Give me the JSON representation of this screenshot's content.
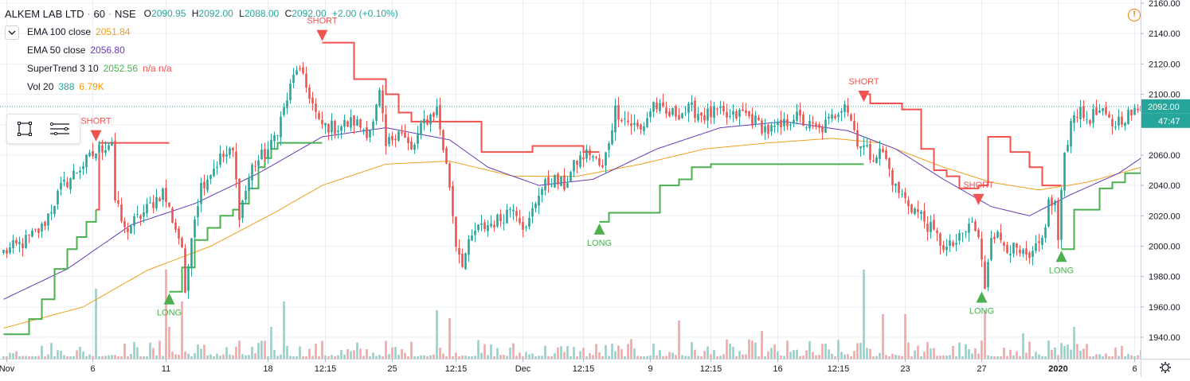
{
  "symbol": {
    "name": "ALKEM LAB LTD",
    "interval": "60",
    "exchange": "NSE"
  },
  "ohlc": {
    "o_label": "O",
    "o": "2090.95",
    "h_label": "H",
    "h": "2092.00",
    "l_label": "L",
    "l": "2088.00",
    "c_label": "C",
    "c": "2092.00",
    "change": "+2.00 (+0.10%)"
  },
  "indicators": [
    {
      "name": "EMA 100 close",
      "value": "2051.84",
      "color": "#f0a01e"
    },
    {
      "name": "EMA 50 close",
      "value": "2056.80",
      "color": "#673ab7"
    },
    {
      "name": "SuperTrend 3 10",
      "value": "2052.56",
      "extra": "n/a n/a",
      "color": "#4caf50",
      "extra_color": "#ef5350"
    },
    {
      "name": "Vol 20",
      "value": "388",
      "value2": "6.79K",
      "color": "#26a69a",
      "value2_color": "#ff9800"
    }
  ],
  "warning_icon": "exclamation-circle-icon",
  "tool_icons": [
    "square-selection-icon",
    "list-lines-icon"
  ],
  "colors": {
    "up": "#26a69a",
    "down": "#ef5350",
    "vol_up": "#8fd3cc",
    "vol_down": "#f4a7a5",
    "st_up": "#4caf50",
    "st_down": "#ef5350",
    "ema100": "#f0a01e",
    "ema50": "#673ab7",
    "grid": "#eceff3",
    "price_line": "#26a69a"
  },
  "chart_data": {
    "type": "candlestick",
    "ylim": [
      1932,
      2162
    ],
    "y_ticks": [
      2160,
      2140,
      2120,
      2100,
      2080,
      2060,
      2040,
      2020,
      2000,
      1980,
      1960,
      1940
    ],
    "y_tick_labels": [
      "2160.00",
      "2140.00",
      "2120.00",
      "2100.00",
      "2080.00",
      "2060.00",
      "2040.00",
      "2020.00",
      "2000.00",
      "1980.00",
      "1960.00",
      "1940.00"
    ],
    "x_labels": [
      {
        "bar": 1,
        "label": "Nov",
        "bold": false
      },
      {
        "bar": 28,
        "label": "6",
        "bold": false
      },
      {
        "bar": 51,
        "label": "11",
        "bold": false
      },
      {
        "bar": 83,
        "label": "18",
        "bold": false
      },
      {
        "bar": 101,
        "label": "12:15",
        "bold": false
      },
      {
        "bar": 122,
        "label": "25",
        "bold": false
      },
      {
        "bar": 142,
        "label": "12:15",
        "bold": false
      },
      {
        "bar": 163,
        "label": "Dec",
        "bold": false
      },
      {
        "bar": 182,
        "label": "12:15",
        "bold": false
      },
      {
        "bar": 203,
        "label": "9",
        "bold": false
      },
      {
        "bar": 222,
        "label": "12:15",
        "bold": false
      },
      {
        "bar": 243,
        "label": "16",
        "bold": false
      },
      {
        "bar": 262,
        "label": "12:15",
        "bold": false
      },
      {
        "bar": 283,
        "label": "23",
        "bold": false
      },
      {
        "bar": 307,
        "label": "27",
        "bold": false
      },
      {
        "bar": 331,
        "label": "2020",
        "bold": true
      },
      {
        "bar": 355,
        "label": "6",
        "bold": false
      }
    ],
    "last_price": {
      "value": 2092,
      "label": "2092.00"
    },
    "countdown": "47:47",
    "close_anchors": [
      [
        0,
        1996
      ],
      [
        6,
        2002
      ],
      [
        12,
        2012
      ],
      [
        18,
        2038
      ],
      [
        24,
        2052
      ],
      [
        28,
        2060
      ],
      [
        34,
        2070
      ],
      [
        35,
        2030
      ],
      [
        38,
        2010
      ],
      [
        44,
        2022
      ],
      [
        50,
        2036
      ],
      [
        56,
        2000
      ],
      [
        57,
        1965
      ],
      [
        59,
        2010
      ],
      [
        62,
        2040
      ],
      [
        68,
        2058
      ],
      [
        72,
        2062
      ],
      [
        74,
        2022
      ],
      [
        78,
        2052
      ],
      [
        84,
        2066
      ],
      [
        88,
        2090
      ],
      [
        92,
        2118
      ],
      [
        96,
        2100
      ],
      [
        99,
        2080
      ],
      [
        104,
        2078
      ],
      [
        110,
        2082
      ],
      [
        114,
        2076
      ],
      [
        116,
        2080
      ],
      [
        118,
        2100
      ],
      [
        120,
        2065
      ],
      [
        124,
        2078
      ],
      [
        128,
        2062
      ],
      [
        132,
        2082
      ],
      [
        136,
        2090
      ],
      [
        140,
        2040
      ],
      [
        142,
        2002
      ],
      [
        144,
        1990
      ],
      [
        148,
        2010
      ],
      [
        152,
        2014
      ],
      [
        156,
        2018
      ],
      [
        160,
        2028
      ],
      [
        164,
        2010
      ],
      [
        168,
        2036
      ],
      [
        172,
        2044
      ],
      [
        176,
        2040
      ],
      [
        180,
        2056
      ],
      [
        184,
        2062
      ],
      [
        188,
        2050
      ],
      [
        192,
        2090
      ],
      [
        196,
        2082
      ],
      [
        200,
        2076
      ],
      [
        204,
        2094
      ],
      [
        208,
        2086
      ],
      [
        212,
        2088
      ],
      [
        216,
        2090
      ],
      [
        220,
        2086
      ],
      [
        224,
        2088
      ],
      [
        228,
        2084
      ],
      [
        232,
        2088
      ],
      [
        236,
        2082
      ],
      [
        240,
        2076
      ],
      [
        244,
        2078
      ],
      [
        248,
        2086
      ],
      [
        252,
        2080
      ],
      [
        256,
        2076
      ],
      [
        260,
        2084
      ],
      [
        264,
        2096
      ],
      [
        268,
        2070
      ],
      [
        272,
        2060
      ],
      [
        276,
        2062
      ],
      [
        280,
        2038
      ],
      [
        284,
        2028
      ],
      [
        288,
        2020
      ],
      [
        292,
        2008
      ],
      [
        296,
        1998
      ],
      [
        300,
        2004
      ],
      [
        304,
        2016
      ],
      [
        306,
        2004
      ],
      [
        308,
        1974
      ],
      [
        310,
        2010
      ],
      [
        314,
        2002
      ],
      [
        318,
        1996
      ],
      [
        322,
        1990
      ],
      [
        326,
        2004
      ],
      [
        328,
        2028
      ],
      [
        330,
        2028
      ],
      [
        331,
        2004
      ],
      [
        333,
        2062
      ],
      [
        336,
        2090
      ],
      [
        340,
        2084
      ],
      [
        344,
        2088
      ],
      [
        348,
        2080
      ],
      [
        352,
        2086
      ],
      [
        356,
        2088
      ],
      [
        357,
        2092
      ]
    ],
    "ema50_anchors": [
      [
        0,
        1965
      ],
      [
        20,
        1985
      ],
      [
        40,
        2014
      ],
      [
        60,
        2028
      ],
      [
        80,
        2048
      ],
      [
        100,
        2072
      ],
      [
        120,
        2078
      ],
      [
        140,
        2070
      ],
      [
        152,
        2052
      ],
      [
        168,
        2040
      ],
      [
        185,
        2044
      ],
      [
        205,
        2064
      ],
      [
        225,
        2078
      ],
      [
        245,
        2082
      ],
      [
        265,
        2076
      ],
      [
        280,
        2064
      ],
      [
        295,
        2044
      ],
      [
        310,
        2026
      ],
      [
        322,
        2020
      ],
      [
        335,
        2034
      ],
      [
        350,
        2048
      ],
      [
        357,
        2058
      ]
    ],
    "ema100_anchors": [
      [
        0,
        1946
      ],
      [
        25,
        1960
      ],
      [
        45,
        1984
      ],
      [
        65,
        2000
      ],
      [
        85,
        2022
      ],
      [
        100,
        2040
      ],
      [
        120,
        2054
      ],
      [
        140,
        2056
      ],
      [
        160,
        2046
      ],
      [
        180,
        2046
      ],
      [
        200,
        2054
      ],
      [
        220,
        2064
      ],
      [
        240,
        2068
      ],
      [
        260,
        2071
      ],
      [
        275,
        2068
      ],
      [
        295,
        2052
      ],
      [
        310,
        2042
      ],
      [
        325,
        2037
      ],
      [
        340,
        2042
      ],
      [
        357,
        2052
      ]
    ],
    "supertrend_segments": [
      {
        "trend": "up",
        "points": [
          [
            0,
            1942
          ],
          [
            8,
            1952
          ],
          [
            12,
            1965
          ],
          [
            16,
            1985
          ],
          [
            20,
            1998
          ],
          [
            23,
            2006
          ],
          [
            26,
            2016
          ],
          [
            29,
            2024
          ]
        ]
      },
      {
        "trend": "down",
        "points": [
          [
            29,
            2024
          ],
          [
            30,
            2068
          ],
          [
            52,
            2068
          ]
        ]
      },
      {
        "trend": "up",
        "points": [
          [
            52,
            1970
          ],
          [
            56,
            1986
          ],
          [
            60,
            2004
          ],
          [
            64,
            2012
          ],
          [
            68,
            2020
          ],
          [
            72,
            2024
          ],
          [
            74,
            2028
          ],
          [
            77,
            2038
          ],
          [
            80,
            2052
          ],
          [
            82,
            2058
          ],
          [
            84,
            2064
          ],
          [
            86,
            2068
          ],
          [
            100,
            2068
          ]
        ]
      },
      {
        "trend": "down",
        "points": [
          [
            100,
            2134
          ],
          [
            102,
            2134
          ],
          [
            110,
            2110
          ],
          [
            120,
            2100
          ],
          [
            124,
            2088
          ],
          [
            128,
            2082
          ],
          [
            150,
            2062
          ],
          [
            164,
            2062
          ],
          [
            166,
            2066
          ],
          [
            180,
            2066
          ],
          [
            182,
            2062
          ],
          [
            187,
            2062
          ]
        ]
      },
      {
        "trend": "up",
        "points": [
          [
            187,
            2016
          ],
          [
            190,
            2022
          ],
          [
            200,
            2022
          ],
          [
            206,
            2040
          ],
          [
            212,
            2044
          ],
          [
            216,
            2052
          ],
          [
            222,
            2054
          ],
          [
            270,
            2054
          ]
        ]
      },
      {
        "trend": "down",
        "points": [
          [
            270,
            2100
          ],
          [
            272,
            2094
          ],
          [
            282,
            2090
          ],
          [
            288,
            2064
          ],
          [
            292,
            2050
          ],
          [
            296,
            2046
          ],
          [
            300,
            2038
          ],
          [
            306,
            2040
          ],
          [
            309,
            2072
          ],
          [
            316,
            2062
          ],
          [
            322,
            2052
          ],
          [
            326,
            2040
          ],
          [
            332,
            2040
          ]
        ]
      },
      {
        "trend": "up",
        "points": [
          [
            332,
            1998
          ],
          [
            336,
            2024
          ],
          [
            340,
            2024
          ],
          [
            344,
            2038
          ],
          [
            348,
            2042
          ],
          [
            352,
            2048
          ],
          [
            357,
            2052
          ]
        ]
      }
    ],
    "signals": [
      {
        "type": "short",
        "bar": 29,
        "label": "SHORT"
      },
      {
        "type": "long",
        "bar": 52,
        "label": "LONG"
      },
      {
        "type": "short",
        "bar": 100,
        "label": "SHORT"
      },
      {
        "type": "long",
        "bar": 187,
        "label": "LONG"
      },
      {
        "type": "short",
        "bar": 270,
        "label": "SHORT"
      },
      {
        "type": "short",
        "bar": 306,
        "label": "SHORT"
      },
      {
        "type": "long",
        "bar": 307,
        "label": "LONG"
      },
      {
        "type": "long",
        "bar": 332,
        "label": "LONG"
      }
    ],
    "volume_spikes": [
      [
        29,
        0.55
      ],
      [
        51,
        0.7
      ],
      [
        52,
        0.25
      ],
      [
        56,
        0.45
      ],
      [
        84,
        0.25
      ],
      [
        88,
        0.45
      ],
      [
        136,
        0.38
      ],
      [
        140,
        0.32
      ],
      [
        212,
        0.3
      ],
      [
        238,
        0.22
      ],
      [
        270,
        0.7
      ],
      [
        276,
        0.35
      ],
      [
        283,
        0.35
      ],
      [
        308,
        0.38
      ],
      [
        320,
        0.2
      ],
      [
        336,
        0.25
      ]
    ]
  }
}
